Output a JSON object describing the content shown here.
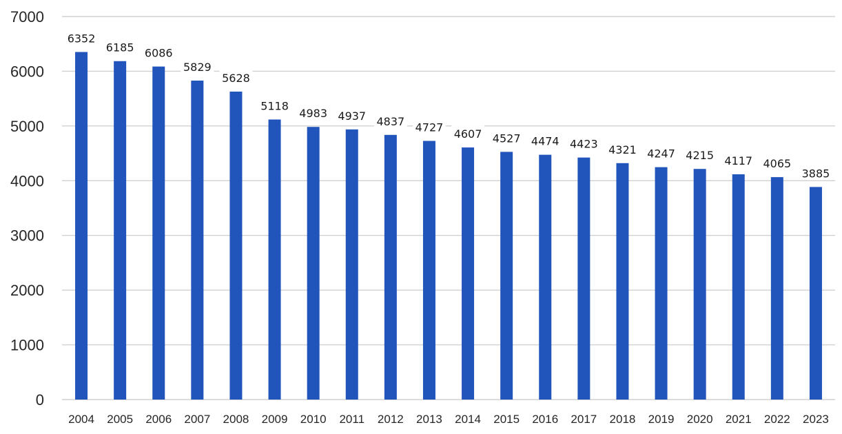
{
  "chart_data": {
    "type": "bar",
    "categories": [
      "2004",
      "2005",
      "2006",
      "2007",
      "2008",
      "2009",
      "2010",
      "2011",
      "2012",
      "2013",
      "2014",
      "2015",
      "2016",
      "2017",
      "2018",
      "2019",
      "2020",
      "2021",
      "2022",
      "2023"
    ],
    "series": [
      {
        "values": [
          6352,
          6185,
          6086,
          5829,
          5628,
          5118,
          4983,
          4937,
          4837,
          4727,
          4607,
          4527,
          4474,
          4423,
          4321,
          4247,
          4215,
          4117,
          4065,
          3885
        ]
      }
    ],
    "title": "",
    "xlabel": "",
    "ylabel": "",
    "ylim": [
      0,
      7000
    ],
    "yticks": [
      0,
      1000,
      2000,
      3000,
      4000,
      5000,
      6000,
      7000
    ],
    "grid": true,
    "legend": "none",
    "data_labels": true,
    "bar_color": "#2155BB"
  }
}
